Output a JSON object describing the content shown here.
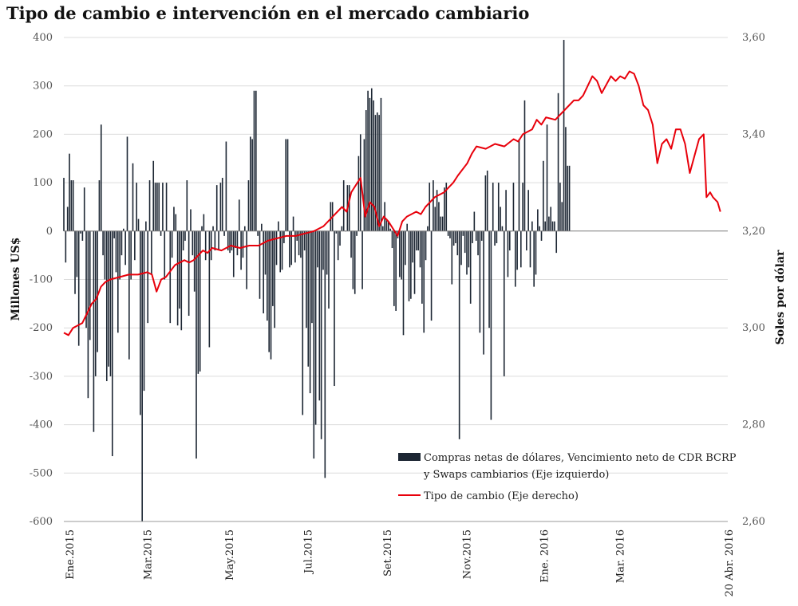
{
  "chart_data": {
    "type": "bar+line",
    "title": "Tipo de cambio e intervención en el mercado cambiario",
    "ylabel_left": "Millones US$",
    "ylabel_right": "Soles por dólar",
    "ylim_left": [
      -600,
      400
    ],
    "ylim_right": [
      2.6,
      3.6
    ],
    "left_ticks": [
      "400",
      "300",
      "200",
      "100",
      "0",
      "-100",
      "-200",
      "-300",
      "-400",
      "-500",
      "-600"
    ],
    "right_ticks": [
      "3,60",
      "3,40",
      "3,20",
      "3,00",
      "2,80",
      "2,60"
    ],
    "x_tick_labels": [
      "Ene.2015",
      "Mar.2015",
      "May.2015",
      "Jul.2015",
      "Set.2015",
      "Nov.2015",
      "Ene. 2016",
      "Mar. 2016",
      "20 Abr. 2016"
    ],
    "grid": true,
    "legend_position": "bottom-right",
    "series": [
      {
        "name": "Compras netas de dólares, Vencimiento neto de CDR BCRP y Swaps cambiarios (Eje izquierdo)",
        "name_lines": [
          "Compras netas de dólares, Vencimiento neto de CDR BCRP",
          "y Swaps cambiarios (Eje izquierdo)"
        ],
        "type": "bar",
        "axis": "left",
        "color": "#1c2633",
        "values": [
          110,
          -65,
          50,
          160,
          105,
          105,
          -130,
          -95,
          -237,
          -5,
          -20,
          90,
          -200,
          -345,
          -225,
          0,
          -415,
          -300,
          -250,
          105,
          220,
          -50,
          -100,
          -310,
          -280,
          -300,
          -465,
          -15,
          -85,
          -210,
          -100,
          -50,
          5,
          -70,
          195,
          -265,
          -100,
          140,
          -60,
          100,
          25,
          -380,
          -600,
          -330,
          20,
          -190,
          105,
          -90,
          145,
          100,
          100,
          100,
          -10,
          100,
          -100,
          100,
          0,
          -190,
          -55,
          50,
          35,
          -195,
          -160,
          -205,
          -40,
          -20,
          105,
          -175,
          45,
          -50,
          -125,
          -470,
          -295,
          -290,
          10,
          35,
          -60,
          0,
          -240,
          -60,
          10,
          -40,
          95,
          -40,
          100,
          110,
          -10,
          185,
          -40,
          -45,
          -40,
          -95,
          -35,
          -50,
          65,
          -80,
          -55,
          10,
          -120,
          105,
          195,
          190,
          290,
          290,
          -10,
          -140,
          15,
          -170,
          -90,
          -185,
          -250,
          -265,
          -155,
          -200,
          -70,
          20,
          -85,
          -80,
          -25,
          190,
          190,
          -75,
          -70,
          30,
          -65,
          -20,
          -50,
          -55,
          -380,
          -40,
          -200,
          -280,
          -335,
          -190,
          -470,
          -400,
          -75,
          -350,
          -430,
          -80,
          -510,
          -90,
          -160,
          60,
          60,
          -320,
          -5,
          -60,
          -30,
          10,
          105,
          0,
          95,
          95,
          -55,
          -120,
          -130,
          -10,
          155,
          200,
          -120,
          190,
          250,
          290,
          275,
          295,
          270,
          240,
          245,
          240,
          275,
          10,
          60,
          25,
          20,
          5,
          -35,
          -155,
          -165,
          -15,
          -95,
          -100,
          -215,
          -70,
          15,
          -145,
          -140,
          -65,
          -130,
          -40,
          -40,
          -75,
          -150,
          -210,
          -60,
          10,
          100,
          -185,
          105,
          50,
          85,
          60,
          30,
          30,
          90,
          100,
          -10,
          -15,
          -110,
          -30,
          -25,
          -50,
          -430,
          -70,
          -10,
          -45,
          -90,
          -75,
          -150,
          -25,
          40,
          -20,
          -50,
          -210,
          -20,
          -255,
          115,
          125,
          -200,
          -390,
          100,
          -30,
          -25,
          100,
          50,
          10,
          -300,
          85,
          -95,
          -40,
          0,
          100,
          -115,
          -80,
          190,
          -75,
          100,
          270,
          -40,
          85,
          -75,
          20,
          -115,
          -90,
          45,
          10,
          -20,
          145,
          20,
          220,
          30,
          50,
          20,
          20,
          -45,
          285,
          100,
          60,
          395,
          215,
          135,
          135
        ],
        "bar_spacing_days": 2.012
      },
      {
        "name": "Tipo de cambio (Eje derecho)",
        "type": "line",
        "axis": "right",
        "color": "#e8000b",
        "points": [
          [
            0,
            2.99
          ],
          [
            5,
            2.985
          ],
          [
            10,
            3.0
          ],
          [
            20,
            3.01
          ],
          [
            25,
            3.03
          ],
          [
            30,
            3.05
          ],
          [
            35,
            3.06
          ],
          [
            40,
            3.085
          ],
          [
            45,
            3.095
          ],
          [
            50,
            3.1
          ],
          [
            60,
            3.105
          ],
          [
            70,
            3.11
          ],
          [
            80,
            3.11
          ],
          [
            90,
            3.115
          ],
          [
            95,
            3.11
          ],
          [
            100,
            3.075
          ],
          [
            105,
            3.1
          ],
          [
            110,
            3.105
          ],
          [
            120,
            3.13
          ],
          [
            125,
            3.135
          ],
          [
            130,
            3.14
          ],
          [
            135,
            3.135
          ],
          [
            140,
            3.14
          ],
          [
            150,
            3.16
          ],
          [
            155,
            3.155
          ],
          [
            160,
            3.165
          ],
          [
            170,
            3.16
          ],
          [
            180,
            3.17
          ],
          [
            190,
            3.165
          ],
          [
            200,
            3.17
          ],
          [
            210,
            3.17
          ],
          [
            220,
            3.18
          ],
          [
            230,
            3.185
          ],
          [
            240,
            3.19
          ],
          [
            250,
            3.19
          ],
          [
            260,
            3.195
          ],
          [
            270,
            3.2
          ],
          [
            280,
            3.21
          ],
          [
            290,
            3.23
          ],
          [
            300,
            3.25
          ],
          [
            305,
            3.24
          ],
          [
            310,
            3.28
          ],
          [
            320,
            3.31
          ],
          [
            325,
            3.23
          ],
          [
            330,
            3.26
          ],
          [
            335,
            3.25
          ],
          [
            340,
            3.21
          ],
          [
            345,
            3.23
          ],
          [
            350,
            3.22
          ],
          [
            360,
            3.19
          ],
          [
            365,
            3.22
          ],
          [
            370,
            3.23
          ],
          [
            380,
            3.24
          ],
          [
            385,
            3.235
          ],
          [
            390,
            3.25
          ],
          [
            395,
            3.26
          ],
          [
            400,
            3.27
          ],
          [
            410,
            3.28
          ],
          [
            420,
            3.3
          ],
          [
            425,
            3.315
          ],
          [
            435,
            3.34
          ],
          [
            440,
            3.36
          ],
          [
            445,
            3.375
          ],
          [
            455,
            3.37
          ],
          [
            465,
            3.38
          ],
          [
            475,
            3.375
          ],
          [
            485,
            3.39
          ],
          [
            490,
            3.385
          ],
          [
            495,
            3.4
          ],
          [
            505,
            3.41
          ],
          [
            510,
            3.43
          ],
          [
            515,
            3.42
          ],
          [
            520,
            3.435
          ],
          [
            530,
            3.43
          ],
          [
            535,
            3.44
          ],
          [
            545,
            3.46
          ],
          [
            550,
            3.47
          ],
          [
            555,
            3.47
          ],
          [
            560,
            3.48
          ],
          [
            565,
            3.5
          ],
          [
            570,
            3.52
          ],
          [
            575,
            3.51
          ],
          [
            580,
            3.485
          ],
          [
            590,
            3.52
          ],
          [
            595,
            3.51
          ],
          [
            600,
            3.52
          ],
          [
            605,
            3.515
          ],
          [
            610,
            3.53
          ],
          [
            615,
            3.525
          ],
          [
            620,
            3.5
          ],
          [
            625,
            3.46
          ],
          [
            630,
            3.45
          ],
          [
            635,
            3.42
          ],
          [
            640,
            3.34
          ],
          [
            645,
            3.38
          ],
          [
            650,
            3.39
          ],
          [
            655,
            3.37
          ],
          [
            660,
            3.41
          ],
          [
            665,
            3.41
          ],
          [
            670,
            3.38
          ],
          [
            675,
            3.32
          ],
          [
            680,
            3.355
          ],
          [
            685,
            3.39
          ],
          [
            690,
            3.4
          ],
          [
            693,
            3.27
          ],
          [
            697,
            3.28
          ],
          [
            700,
            3.27
          ],
          [
            705,
            3.26
          ],
          [
            708,
            3.24
          ]
        ]
      }
    ]
  }
}
